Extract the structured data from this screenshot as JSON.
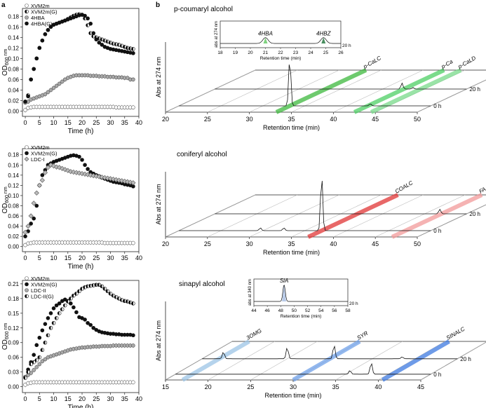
{
  "figure": {
    "panel_a": "a",
    "panel_b": "b"
  },
  "chart_data": [
    {
      "id": "growth_1",
      "type": "scatter",
      "xlabel": "Time (h)",
      "ylabel_main": "OD",
      "ylabel_sub": "600 nm",
      "xlim": [
        -1,
        40
      ],
      "ylim": [
        -0.01,
        0.195
      ],
      "xticks": [
        "0",
        "5",
        "10",
        "15",
        "20",
        "25",
        "30",
        "35",
        "40"
      ],
      "yticks": [
        "0.00",
        "0.02",
        "0.04",
        "0.06",
        "0.08",
        "0.10",
        "0.12",
        "0.14",
        "0.16",
        "0.18"
      ],
      "x": [
        0,
        1,
        2,
        3,
        4,
        5,
        6,
        7,
        8,
        9,
        10,
        11,
        12,
        13,
        14,
        15,
        16,
        17,
        18,
        19,
        20,
        21,
        22,
        23,
        24,
        25,
        26,
        27,
        28,
        29,
        30,
        31,
        32,
        33,
        34,
        35,
        36,
        37,
        38
      ],
      "series": [
        {
          "name": "XVM2m",
          "marker": "open",
          "values": [
            0.002,
            0.006,
            0.007,
            0.008,
            0.008,
            0.008,
            0.008,
            0.008,
            0.008,
            0.008,
            0.008,
            0.008,
            0.008,
            0.008,
            0.008,
            0.008,
            0.008,
            0.008,
            0.008,
            0.008,
            0.008,
            0.008,
            0.008,
            0.008,
            0.008,
            0.008,
            0.008,
            0.008,
            0.008,
            0.008,
            0.008,
            0.008,
            0.007,
            0.007,
            0.007,
            0.007,
            0.007,
            0.007,
            0.007
          ]
        },
        {
          "name": "XVM2m(G)",
          "marker": "half",
          "values": [
            0.018,
            0.03,
            0.06,
            0.08,
            0.1,
            0.12,
            0.134,
            0.146,
            0.154,
            0.16,
            0.164,
            0.166,
            0.168,
            0.17,
            0.172,
            0.175,
            0.178,
            0.181,
            0.183,
            0.184,
            0.183,
            0.176,
            0.163,
            0.148,
            0.142,
            0.14,
            0.138,
            0.136,
            0.134,
            0.132,
            0.13,
            0.128,
            0.127,
            0.126,
            0.124,
            0.122,
            0.12,
            0.119,
            0.118
          ]
        },
        {
          "name": "4HBA",
          "marker": "gray",
          "values": [
            0.016,
            0.018,
            0.022,
            0.024,
            0.026,
            0.028,
            0.03,
            0.032,
            0.036,
            0.04,
            0.044,
            0.048,
            0.052,
            0.056,
            0.06,
            0.063,
            0.065,
            0.067,
            0.068,
            0.068,
            0.068,
            0.068,
            0.068,
            0.067,
            0.067,
            0.067,
            0.066,
            0.066,
            0.066,
            0.065,
            0.065,
            0.065,
            0.064,
            0.064,
            0.064,
            0.063,
            0.063,
            0.06,
            0.06
          ]
        },
        {
          "name": "4HBA(G)",
          "marker": "filled",
          "values": [
            0.018,
            0.028,
            0.06,
            0.08,
            0.1,
            0.12,
            0.134,
            0.146,
            0.154,
            0.16,
            0.164,
            0.166,
            0.168,
            0.17,
            0.172,
            0.174,
            0.176,
            0.178,
            0.18,
            0.182,
            0.183,
            0.181,
            0.176,
            0.166,
            0.148,
            0.136,
            0.13,
            0.126,
            0.122,
            0.12,
            0.118,
            0.117,
            0.116,
            0.115,
            0.114,
            0.113,
            0.112,
            0.111,
            0.11
          ]
        }
      ]
    },
    {
      "id": "growth_2",
      "type": "scatter",
      "xlabel": "Time (h)",
      "ylabel_main": "OD",
      "ylabel_sub": "600 nm",
      "xlim": [
        -1,
        40
      ],
      "ylim": [
        -0.01,
        0.192
      ],
      "xticks": [
        "0",
        "5",
        "10",
        "15",
        "20",
        "25",
        "30",
        "35",
        "40"
      ],
      "yticks": [
        "0.00",
        "0.02",
        "0.04",
        "0.06",
        "0.08",
        "0.10",
        "0.12",
        "0.14",
        "0.16",
        "0.18"
      ],
      "x": [
        0,
        1,
        2,
        3,
        4,
        5,
        6,
        7,
        8,
        9,
        10,
        11,
        12,
        13,
        14,
        15,
        16,
        17,
        18,
        19,
        20,
        21,
        22,
        23,
        24,
        25,
        26,
        27,
        28,
        29,
        30,
        31,
        32,
        33,
        34,
        35,
        36,
        37,
        38
      ],
      "series": [
        {
          "name": "XVM2m",
          "marker": "open",
          "values": [
            0.003,
            0.006,
            0.007,
            0.008,
            0.008,
            0.008,
            0.008,
            0.008,
            0.008,
            0.008,
            0.008,
            0.008,
            0.008,
            0.008,
            0.008,
            0.008,
            0.008,
            0.008,
            0.008,
            0.008,
            0.008,
            0.008,
            0.008,
            0.008,
            0.008,
            0.008,
            0.008,
            0.008,
            0.007,
            0.007,
            0.007,
            0.007,
            0.007,
            0.007,
            0.007,
            0.007,
            0.007,
            0.007,
            0.007
          ]
        },
        {
          "name": "XVM2m(G)",
          "marker": "filled",
          "values": [
            0.02,
            0.03,
            0.045,
            0.055,
            0.08,
            0.12,
            0.14,
            0.15,
            0.16,
            0.163,
            0.166,
            0.168,
            0.17,
            0.172,
            0.174,
            0.176,
            0.178,
            0.179,
            0.178,
            0.176,
            0.17,
            0.16,
            0.152,
            0.146,
            0.143,
            0.14,
            0.138,
            0.135,
            0.133,
            0.131,
            0.129,
            0.127,
            0.126,
            0.125,
            0.124,
            0.122,
            0.121,
            0.12,
            0.118
          ]
        },
        {
          "name": "LDC-I",
          "marker": "diamond",
          "values": [
            0.028,
            0.04,
            0.06,
            0.085,
            0.105,
            0.12,
            0.13,
            0.145,
            0.155,
            0.16,
            0.158,
            0.156,
            0.155,
            0.153,
            0.151,
            0.149,
            0.147,
            0.146,
            0.145,
            0.144,
            0.143,
            0.142,
            0.141,
            0.14,
            0.139,
            0.138,
            0.137,
            0.136,
            0.135,
            0.134,
            0.133,
            0.132,
            0.131,
            0.13,
            0.129,
            0.128,
            0.127,
            0.126,
            0.125
          ]
        }
      ]
    },
    {
      "id": "growth_3",
      "type": "scatter",
      "xlabel": "Time (h)",
      "ylabel_main": "OD",
      "ylabel_sub": "600 nm",
      "xlim": [
        -1,
        40
      ],
      "ylim": [
        -0.012,
        0.217
      ],
      "xticks": [
        "0",
        "5",
        "10",
        "15",
        "20",
        "25",
        "30",
        "35",
        "40"
      ],
      "yticks": [
        "0.00",
        "0.03",
        "0.06",
        "0.09",
        "0.12",
        "0.15",
        "0.18",
        "0.21"
      ],
      "x": [
        0,
        1,
        2,
        3,
        4,
        5,
        6,
        7,
        8,
        9,
        10,
        11,
        12,
        13,
        14,
        15,
        16,
        17,
        18,
        19,
        20,
        21,
        22,
        23,
        24,
        25,
        26,
        27,
        28,
        29,
        30,
        31,
        32,
        33,
        34,
        35,
        36,
        37,
        38
      ],
      "series": [
        {
          "name": "XVM2m",
          "marker": "open",
          "values": [
            0.004,
            0.007,
            0.008,
            0.009,
            0.009,
            0.009,
            0.009,
            0.009,
            0.009,
            0.009,
            0.009,
            0.009,
            0.009,
            0.009,
            0.009,
            0.009,
            0.009,
            0.009,
            0.009,
            0.009,
            0.009,
            0.009,
            0.009,
            0.009,
            0.009,
            0.009,
            0.009,
            0.009,
            0.009,
            0.009,
            0.009,
            0.009,
            0.009,
            0.009,
            0.009,
            0.009,
            0.009,
            0.009,
            0.009
          ]
        },
        {
          "name": "XVM2m(G)",
          "marker": "filled",
          "values": [
            0.02,
            0.035,
            0.05,
            0.065,
            0.085,
            0.1,
            0.115,
            0.128,
            0.14,
            0.15,
            0.16,
            0.166,
            0.17,
            0.175,
            0.178,
            0.175,
            0.17,
            0.162,
            0.152,
            0.142,
            0.14,
            0.137,
            0.13,
            0.126,
            0.12,
            0.116,
            0.113,
            0.111,
            0.11,
            0.109,
            0.108,
            0.108,
            0.107,
            0.107,
            0.106,
            0.106,
            0.106,
            0.106,
            0.105
          ]
        },
        {
          "name": "LDC-II",
          "marker": "gray",
          "values": [
            0.02,
            0.024,
            0.028,
            0.034,
            0.04,
            0.046,
            0.052,
            0.056,
            0.06,
            0.062,
            0.064,
            0.066,
            0.068,
            0.07,
            0.072,
            0.074,
            0.076,
            0.077,
            0.078,
            0.079,
            0.08,
            0.08,
            0.081,
            0.081,
            0.082,
            0.082,
            0.082,
            0.083,
            0.083,
            0.083,
            0.083,
            0.084,
            0.084,
            0.084,
            0.084,
            0.084,
            0.084,
            0.084,
            0.084
          ]
        },
        {
          "name": "LDC-II(G)",
          "marker": "half",
          "values": [
            0.018,
            0.03,
            0.046,
            0.05,
            0.054,
            0.06,
            0.075,
            0.09,
            0.105,
            0.12,
            0.13,
            0.14,
            0.15,
            0.158,
            0.166,
            0.174,
            0.18,
            0.186,
            0.19,
            0.195,
            0.2,
            0.203,
            0.205,
            0.206,
            0.207,
            0.208,
            0.208,
            0.205,
            0.2,
            0.195,
            0.19,
            0.186,
            0.183,
            0.18,
            0.177,
            0.175,
            0.174,
            0.172,
            0.17
          ]
        }
      ]
    },
    {
      "id": "hplc_pcoumaryl",
      "type": "line",
      "title": "p-coumaryl alcohol",
      "ylabel": "Abs at 274 nm",
      "xlabel": "Retention time (min)",
      "xlim": [
        20,
        50
      ],
      "xticks": [
        "20",
        "25",
        "30",
        "35",
        "40",
        "45",
        "50"
      ],
      "traces": [
        "0 h",
        "20 h"
      ],
      "bands": [
        {
          "label": "p-CaLC",
          "rt": 33.2,
          "color": "#3db83d"
        },
        {
          "label": "p-Ca",
          "rt": 42.5,
          "color": "#4ecf64"
        },
        {
          "label": "p-CaLD",
          "rt": 44.5,
          "color": "#78d98a"
        }
      ],
      "peaks": [
        {
          "trace": "0 h",
          "rt": 33.2,
          "height": 1.0
        },
        {
          "trace": "0 h",
          "rt": 42.8,
          "height": 0.04
        },
        {
          "trace": "20 h",
          "rt": 42.3,
          "height": 0.12
        },
        {
          "trace": "20 h",
          "rt": 43.6,
          "height": 0.03
        }
      ],
      "inset": {
        "ylabel": "abs at 274 nm",
        "xlabel": "Retention time (min)",
        "xlim": [
          18,
          26
        ],
        "xticks": [
          "18",
          "19",
          "20",
          "21",
          "22",
          "23",
          "24",
          "25",
          "26"
        ],
        "trace": "20 h",
        "peaks": [
          {
            "label": "4HBA",
            "rt": 21.0,
            "color": "#7fd27f"
          },
          {
            "label": "4HBZ",
            "rt": 24.85,
            "color": "#4a8f60"
          }
        ]
      }
    },
    {
      "id": "hplc_coniferyl",
      "type": "line",
      "title": "coniferyl alcohol",
      "ylabel": "Abs at 274 nm",
      "xlabel": "Retention time (min)",
      "xlim": [
        20,
        50
      ],
      "xticks": [
        "20",
        "25",
        "30",
        "35",
        "40",
        "45",
        "50"
      ],
      "traces": [
        "0 h",
        "20 h"
      ],
      "bands": [
        {
          "label": "COALC",
          "rt": 37.0,
          "color": "#e03535"
        },
        {
          "label": "FA",
          "rt": 47.0,
          "color": "#f29a9a"
        }
      ],
      "peaks": [
        {
          "trace": "0 h",
          "rt": 37.0,
          "height": 1.0
        },
        {
          "trace": "0 h",
          "rt": 29.7,
          "height": 0.05
        },
        {
          "trace": "0 h",
          "rt": 32.5,
          "height": 0.05
        },
        {
          "trace": "20 h",
          "rt": 46.8,
          "height": 0.08
        }
      ]
    },
    {
      "id": "hplc_sinapyl",
      "type": "line",
      "title": "sinapyl alcohol",
      "ylabel": "Abs at 274 nm",
      "xlabel": "Retention time (min)",
      "xlim": [
        15,
        45
      ],
      "xticks": [
        "15",
        "20",
        "25",
        "30",
        "35",
        "40",
        "45"
      ],
      "traces": [
        "0 h",
        "20 h"
      ],
      "bands": [
        {
          "label": "3OMG",
          "rt": 17.0,
          "color": "#9cc4e6"
        },
        {
          "label": "SYR",
          "rt": 30.0,
          "color": "#6fa0e8"
        },
        {
          "label": "SINALC",
          "rt": 40.5,
          "color": "#3d7ae0"
        }
      ],
      "peaks": [
        {
          "trace": "20 h",
          "rt": 17.5,
          "height": 0.18
        },
        {
          "trace": "20 h",
          "rt": 25.0,
          "height": 0.3
        },
        {
          "trace": "20 h",
          "rt": 30.5,
          "height": 0.36
        },
        {
          "trace": "20 h",
          "rt": 38.5,
          "height": 0.05
        },
        {
          "trace": "0 h",
          "rt": 35.5,
          "height": 0.1
        },
        {
          "trace": "0 h",
          "rt": 38.0,
          "height": 0.3
        }
      ],
      "inset": {
        "ylabel": "abs at 340 nm",
        "xlabel": "Retention time (min)",
        "xlim": [
          44,
          58
        ],
        "xticks": [
          "44",
          "46",
          "48",
          "50",
          "52",
          "54",
          "56",
          "58"
        ],
        "trace": "20 h",
        "peaks": [
          {
            "label": "SiA",
            "rt": 48.5,
            "color": "#b9cbe8"
          }
        ]
      }
    }
  ]
}
